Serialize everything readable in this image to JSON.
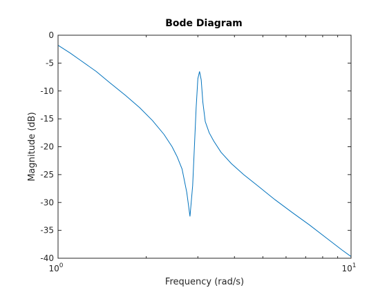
{
  "chart_data": {
    "type": "line",
    "title": "Bode Diagram",
    "xlabel": "Frequency  (rad/s)",
    "ylabel": "Magnitude (dB)",
    "xscale": "log",
    "xlim": [
      1,
      10
    ],
    "ylim": [
      -40,
      0
    ],
    "x_ticks": [
      {
        "base": "10",
        "exp": "0"
      },
      {
        "base": "10",
        "exp": "1"
      }
    ],
    "y_ticks": [
      "0",
      "-5",
      "-10",
      "-15",
      "-20",
      "-25",
      "-30",
      "-35",
      "-40"
    ],
    "grid": false,
    "line_color": "#0072BD",
    "series": [
      {
        "x": [
          1.0,
          1.1,
          1.2,
          1.35,
          1.5,
          1.7,
          1.9,
          2.1,
          2.3,
          2.45,
          2.55,
          2.65,
          2.75,
          2.82,
          2.88,
          2.92,
          2.96,
          3.0,
          3.04,
          3.08,
          3.12,
          3.18,
          3.28,
          3.4,
          3.6,
          3.9,
          4.3,
          4.8,
          5.5,
          6.3,
          7.2,
          8.3,
          9.3,
          10.0
        ],
        "y": [
          -1.8,
          -3.2,
          -4.6,
          -6.5,
          -8.5,
          -10.8,
          -13.0,
          -15.3,
          -17.8,
          -20.0,
          -21.8,
          -24.0,
          -28.2,
          -32.5,
          -27.0,
          -20.0,
          -13.0,
          -7.8,
          -6.5,
          -8.0,
          -12.0,
          -15.5,
          -17.5,
          -19.0,
          -21.0,
          -23.0,
          -25.0,
          -27.0,
          -29.5,
          -31.8,
          -34.0,
          -36.5,
          -38.5,
          -39.7
        ]
      }
    ]
  }
}
